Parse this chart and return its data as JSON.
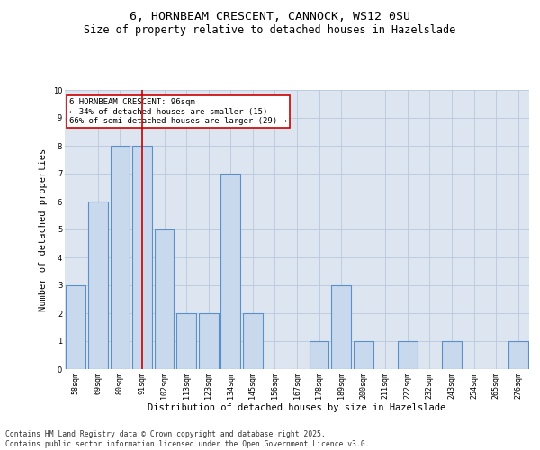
{
  "title_line1": "6, HORNBEAM CRESCENT, CANNOCK, WS12 0SU",
  "title_line2": "Size of property relative to detached houses in Hazelslade",
  "xlabel": "Distribution of detached houses by size in Hazelslade",
  "ylabel": "Number of detached properties",
  "categories": [
    "58sqm",
    "69sqm",
    "80sqm",
    "91sqm",
    "102sqm",
    "113sqm",
    "123sqm",
    "134sqm",
    "145sqm",
    "156sqm",
    "167sqm",
    "178sqm",
    "189sqm",
    "200sqm",
    "211sqm",
    "222sqm",
    "232sqm",
    "243sqm",
    "254sqm",
    "265sqm",
    "276sqm"
  ],
  "values": [
    3,
    6,
    8,
    8,
    5,
    2,
    2,
    7,
    2,
    0,
    0,
    1,
    3,
    1,
    0,
    1,
    0,
    1,
    0,
    0,
    1
  ],
  "bar_color": "#c9d9ed",
  "bar_edge_color": "#5b8fc9",
  "bar_linewidth": 0.8,
  "grid_color": "#b8c8dc",
  "background_color": "#dde6f0",
  "red_line_index": 3,
  "annotation_text": "6 HORNBEAM CRESCENT: 96sqm\n← 34% of detached houses are smaller (15)\n66% of semi-detached houses are larger (29) →",
  "annotation_box_color": "#ffffff",
  "annotation_box_edge": "#cc0000",
  "ylim": [
    0,
    10
  ],
  "yticks": [
    0,
    1,
    2,
    3,
    4,
    5,
    6,
    7,
    8,
    9,
    10
  ],
  "footer_line1": "Contains HM Land Registry data © Crown copyright and database right 2025.",
  "footer_line2": "Contains public sector information licensed under the Open Government Licence v3.0.",
  "title_fontsize": 9.5,
  "subtitle_fontsize": 8.5,
  "xlabel_fontsize": 7.5,
  "ylabel_fontsize": 7.5,
  "tick_fontsize": 6.0,
  "footer_fontsize": 5.8,
  "annotation_fontsize": 6.5
}
